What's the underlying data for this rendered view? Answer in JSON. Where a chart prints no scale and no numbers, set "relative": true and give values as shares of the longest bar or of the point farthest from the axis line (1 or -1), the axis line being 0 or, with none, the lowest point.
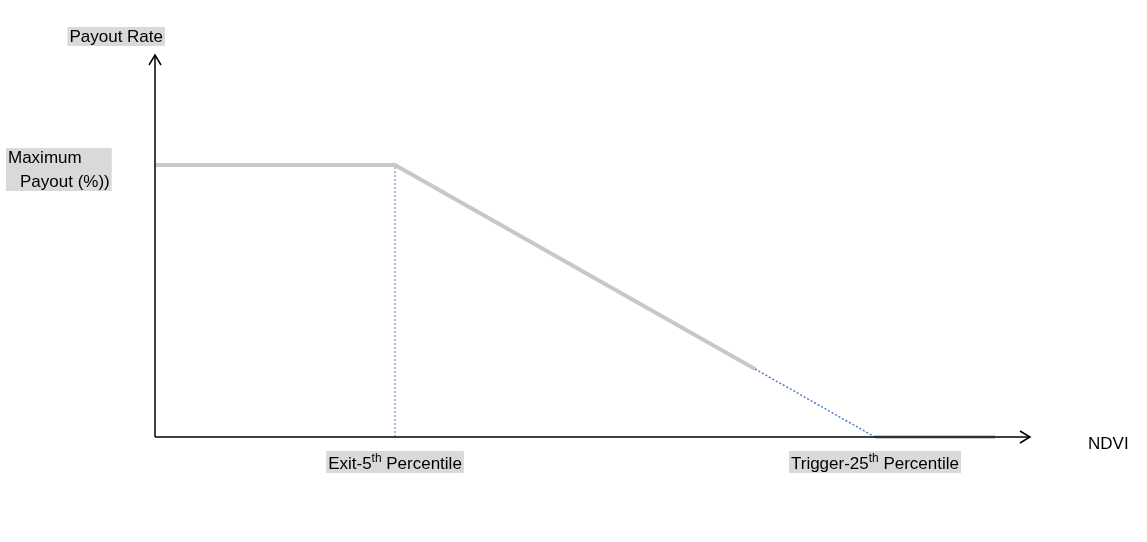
{
  "chart_data": {
    "type": "line",
    "relative": true,
    "xlabel": "NDVI",
    "categories": [
      null,
      null,
      "Exit-5$^{th}$ Percentile",
      null,
      null,
      null,
      "Trigger-25$^{th}$ Percentile",
      null
    ],
    "tick_labels": "x",
    "series": [
      {
        "color": "#c8c8c8",
        "line_style": "solid",
        "values": [
          1,
          1,
          1,
          0.75,
          0.5,
          0.25,
          null,
          null
        ]
      },
      {
        "color": "#4a7fc1",
        "line_style": "dotted",
        "values": [
          null,
          null,
          null,
          null,
          null,
          0.25,
          0,
          null
        ]
      },
      {
        "color": "#c8c8c8",
        "line_style": "solid",
        "values": [
          null,
          null,
          null,
          null,
          null,
          null,
          0,
          0
        ]
      }
    ],
    "ref_lines": [
      {
        "axis": "x",
        "value": "Exit-5$^{th}$ Percentile",
        "color": "#4a7fc1",
        "line_style": "dotted"
      }
    ],
    "annotations": [
      "Payout Rate",
      "Maximum Payout (%))"
    ]
  }
}
